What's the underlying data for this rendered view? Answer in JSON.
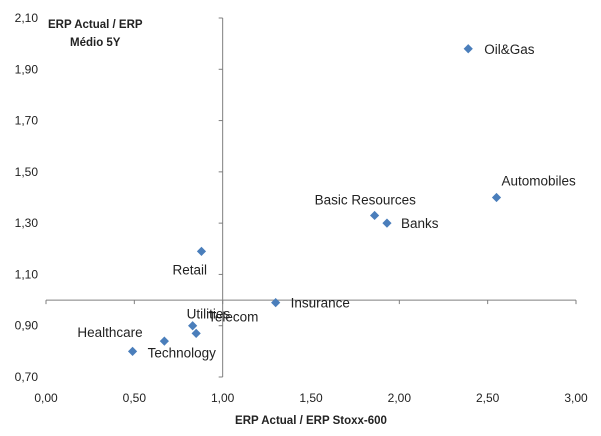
{
  "chart_data": {
    "type": "scatter",
    "title": "",
    "xlabel": "ERP Actual / ERP Stoxx-600",
    "ylabel_lines": [
      "ERP Actual / ERP",
      "Médio 5Y"
    ],
    "xlim": [
      0,
      3
    ],
    "ylim": [
      0.7,
      2.1
    ],
    "x_ticks": [
      0,
      0.5,
      1,
      1.5,
      2,
      2.5,
      3
    ],
    "y_ticks": [
      0.7,
      0.9,
      1.1,
      1.3,
      1.5,
      1.7,
      1.9,
      2.1
    ],
    "x_tick_labels": [
      "0,00",
      "0,50",
      "1,00",
      "1,50",
      "2,00",
      "2,50",
      "3,00"
    ],
    "y_tick_labels": [
      "0,70",
      "0,90",
      "1,10",
      "1,30",
      "1,50",
      "1,70",
      "1,90",
      "2,10"
    ],
    "axes_cross": {
      "x": 1.0,
      "y": 1.0
    },
    "grid": false,
    "legend": "none",
    "marker_color": "#4a7ebb",
    "points": [
      {
        "label": "Oil&Gas",
        "x": 2.39,
        "y": 1.98
      },
      {
        "label": "Automobiles",
        "x": 2.55,
        "y": 1.4
      },
      {
        "label": "Basic Resources",
        "x": 1.86,
        "y": 1.33
      },
      {
        "label": "Banks",
        "x": 1.93,
        "y": 1.3
      },
      {
        "label": "Retail",
        "x": 0.88,
        "y": 1.19
      },
      {
        "label": "Insurance",
        "x": 1.3,
        "y": 0.99
      },
      {
        "label": "Utilities",
        "x": 0.83,
        "y": 0.9
      },
      {
        "label": "Telecom",
        "x": 0.85,
        "y": 0.87
      },
      {
        "label": "Healthcare",
        "x": 0.67,
        "y": 0.84
      },
      {
        "label": "Technology",
        "x": 0.49,
        "y": 0.8
      }
    ]
  }
}
